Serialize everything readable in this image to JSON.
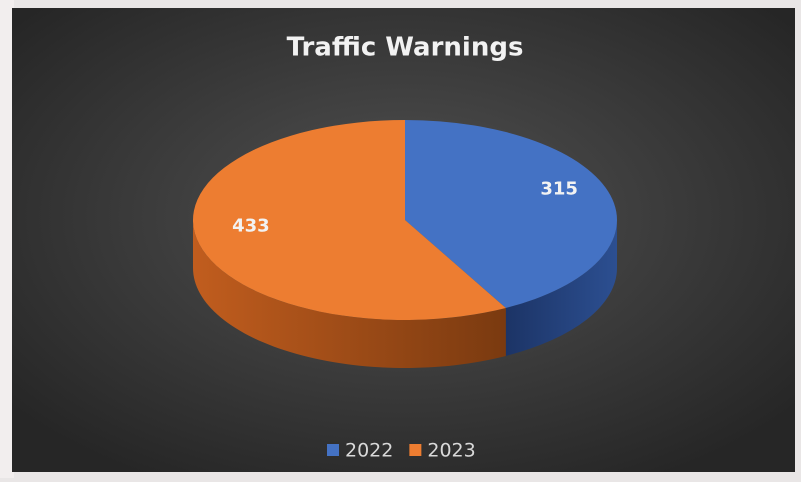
{
  "chart_data": {
    "type": "pie3d",
    "title": "Traffic Warnings",
    "categories": [
      "2022",
      "2023"
    ],
    "values": [
      315,
      433
    ],
    "colors": [
      "#4472c4",
      "#ed7d31"
    ],
    "legend": "bottom"
  }
}
